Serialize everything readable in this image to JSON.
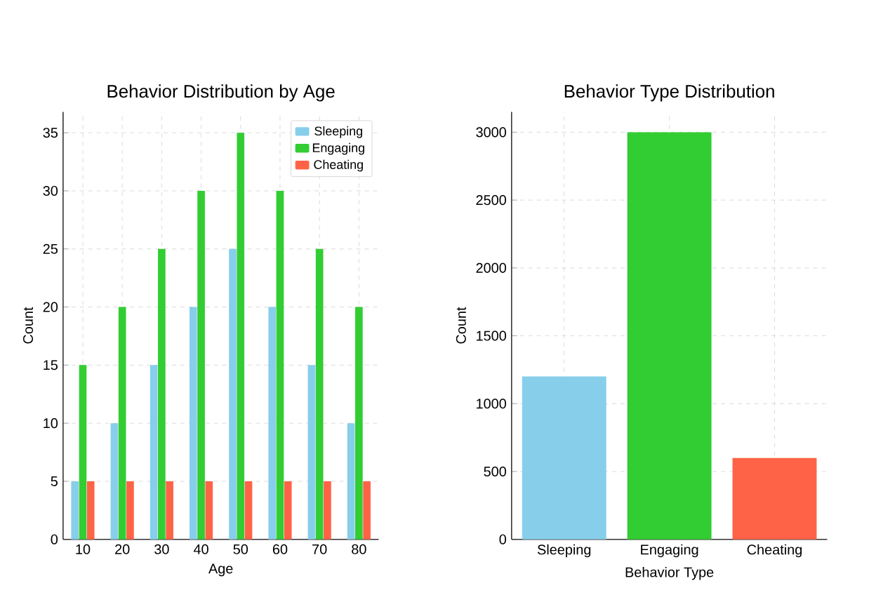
{
  "chart_data": [
    {
      "type": "bar",
      "title": "Behavior Distribution by Age",
      "xlabel": "Age",
      "ylabel": "Count",
      "categories": [
        "10",
        "20",
        "30",
        "40",
        "50",
        "60",
        "70",
        "80"
      ],
      "series": [
        {
          "name": "Sleeping",
          "color": "#87ceeb",
          "values": [
            5,
            10,
            15,
            20,
            25,
            20,
            15,
            10
          ]
        },
        {
          "name": "Engaging",
          "color": "#32cd32",
          "values": [
            15,
            20,
            25,
            30,
            35,
            30,
            25,
            20
          ]
        },
        {
          "name": "Cheating",
          "color": "#ff6347",
          "values": [
            5,
            5,
            5,
            5,
            5,
            5,
            5,
            5
          ]
        }
      ],
      "ylim": [
        0,
        36.8
      ],
      "yticks": [
        0,
        5,
        10,
        15,
        20,
        25,
        30,
        35
      ],
      "grid": true,
      "legend": "top right"
    },
    {
      "type": "bar",
      "title": "Behavior Type Distribution",
      "xlabel": "Behavior Type",
      "ylabel": "Count",
      "categories": [
        "Sleeping",
        "Engaging",
        "Cheating"
      ],
      "values": [
        1200,
        3000,
        600
      ],
      "colors": [
        "#87ceeb",
        "#32cd32",
        "#ff6347"
      ],
      "ylim": [
        0,
        3150
      ],
      "yticks": [
        0,
        500,
        1000,
        1500,
        2000,
        2500,
        3000
      ],
      "grid": true
    }
  ]
}
